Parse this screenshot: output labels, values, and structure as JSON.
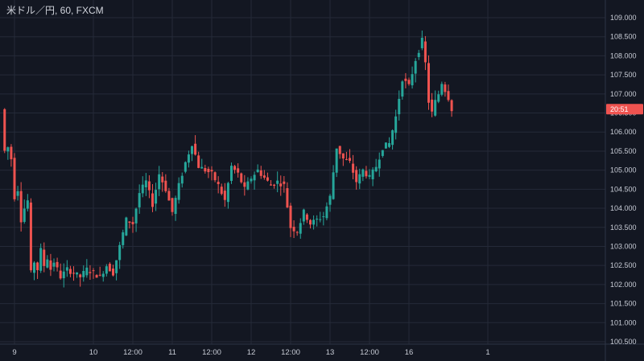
{
  "chart_data": {
    "type": "candlestick",
    "title": "米ドル／円, 60, FXCM",
    "ylim": [
      100.5,
      109.2
    ],
    "y_ticks": [
      "109.000",
      "108.500",
      "108.000",
      "107.500",
      "107.000",
      "106.500",
      "106.000",
      "105.500",
      "105.000",
      "104.500",
      "104.000",
      "103.500",
      "103.000",
      "102.500",
      "102.000",
      "101.500",
      "101.000",
      "100.500"
    ],
    "x_ticks": [
      {
        "label": "9",
        "hour": 0
      },
      {
        "label": "10",
        "hour": 24
      },
      {
        "label": "12:00",
        "hour": 36
      },
      {
        "label": "11",
        "hour": 48
      },
      {
        "label": "12:00",
        "hour": 60
      },
      {
        "label": "12",
        "hour": 72
      },
      {
        "label": "12:00",
        "hour": 84
      },
      {
        "label": "13",
        "hour": 96
      },
      {
        "label": "12:00",
        "hour": 108
      },
      {
        "label": "16",
        "hour": 120
      },
      {
        "label": "1",
        "hour": 144
      }
    ],
    "last_price_label": "20:51",
    "last_price": 106.6,
    "up_color": "#26a69a",
    "down_color": "#ef5350",
    "background": "#131722",
    "grid": true
  }
}
